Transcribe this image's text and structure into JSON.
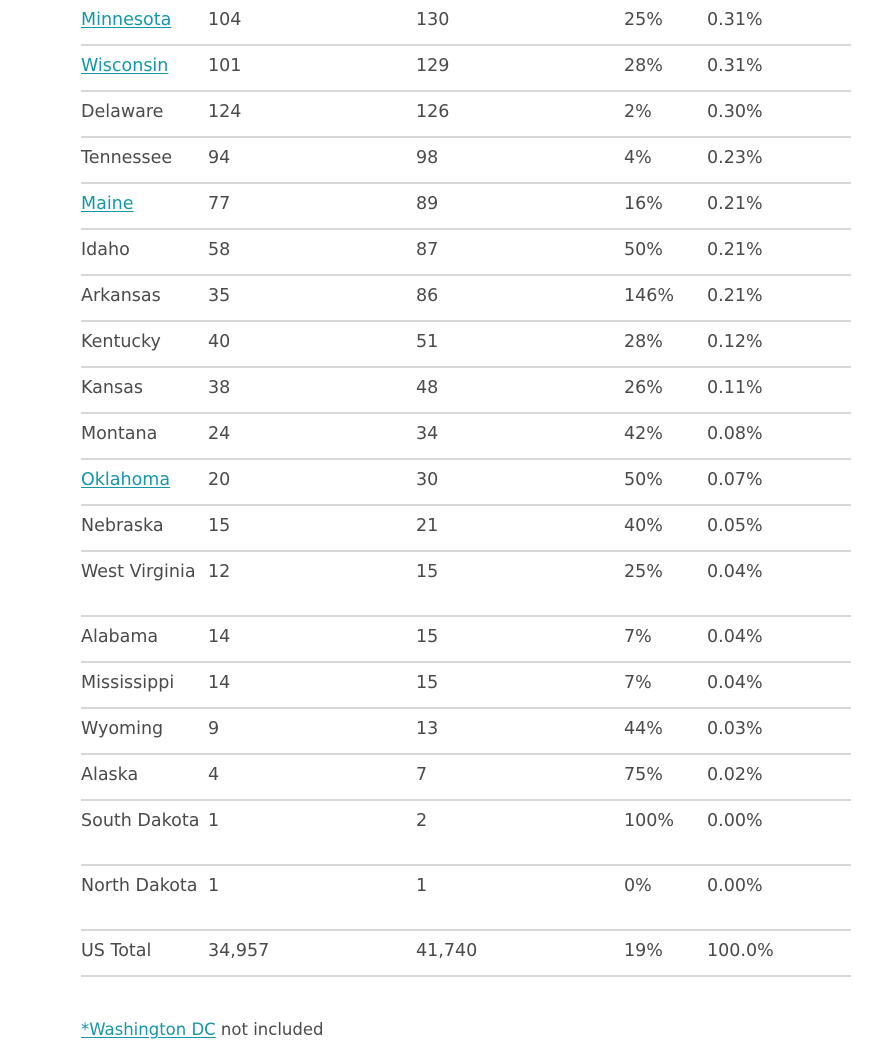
{
  "rows": [
    {
      "state": "Minnesota",
      "link": true,
      "v1": "104",
      "v2": "130",
      "pct": "25%",
      "share": "0.31%"
    },
    {
      "state": "Wisconsin",
      "link": true,
      "v1": "101",
      "v2": "129",
      "pct": "28%",
      "share": "0.31%"
    },
    {
      "state": "Delaware",
      "link": false,
      "v1": "124",
      "v2": "126",
      "pct": "2%",
      "share": "0.30%"
    },
    {
      "state": "Tennessee",
      "link": false,
      "v1": "94",
      "v2": "98",
      "pct": "4%",
      "share": "0.23%"
    },
    {
      "state": "Maine",
      "link": true,
      "v1": "77",
      "v2": "89",
      "pct": "16%",
      "share": "0.21%"
    },
    {
      "state": "Idaho",
      "link": false,
      "v1": "58",
      "v2": "87",
      "pct": "50%",
      "share": "0.21%"
    },
    {
      "state": "Arkansas",
      "link": false,
      "v1": "35",
      "v2": "86",
      "pct": "146%",
      "share": "0.21%"
    },
    {
      "state": "Kentucky",
      "link": false,
      "v1": "40",
      "v2": "51",
      "pct": "28%",
      "share": "0.12%"
    },
    {
      "state": "Kansas",
      "link": false,
      "v1": "38",
      "v2": "48",
      "pct": "26%",
      "share": "0.11%"
    },
    {
      "state": "Montana",
      "link": false,
      "v1": "24",
      "v2": "34",
      "pct": "42%",
      "share": "0.08%"
    },
    {
      "state": "Oklahoma",
      "link": true,
      "v1": "20",
      "v2": "30",
      "pct": "50%",
      "share": "0.07%"
    },
    {
      "state": "Nebraska",
      "link": false,
      "v1": "15",
      "v2": "21",
      "pct": "40%",
      "share": "0.05%"
    },
    {
      "state": "West Virginia",
      "link": false,
      "v1": "12",
      "v2": "15",
      "pct": "25%",
      "share": "0.04%"
    },
    {
      "state": "Alabama",
      "link": false,
      "v1": "14",
      "v2": "15",
      "pct": "7%",
      "share": "0.04%"
    },
    {
      "state": "Mississippi",
      "link": false,
      "v1": "14",
      "v2": "15",
      "pct": "7%",
      "share": "0.04%"
    },
    {
      "state": "Wyoming",
      "link": false,
      "v1": "9",
      "v2": "13",
      "pct": "44%",
      "share": "0.03%"
    },
    {
      "state": "Alaska",
      "link": false,
      "v1": "4",
      "v2": "7",
      "pct": "75%",
      "share": "0.02%"
    },
    {
      "state": "South Dakota",
      "link": false,
      "v1": "1",
      "v2": "2",
      "pct": "100%",
      "share": "0.00%"
    },
    {
      "state": "North Dakota",
      "link": false,
      "v1": "1",
      "v2": "1",
      "pct": "0%",
      "share": "0.00%"
    },
    {
      "state": "US Total",
      "link": false,
      "v1": "34,957",
      "v2": "41,740",
      "pct": "19%",
      "share": "100.0%"
    }
  ],
  "footnote": {
    "link_text": "*Washington DC",
    "suffix": " not included"
  },
  "colors": {
    "link": "#1797a6",
    "text": "#4a4a4a",
    "divider": "#d8d8d8"
  }
}
